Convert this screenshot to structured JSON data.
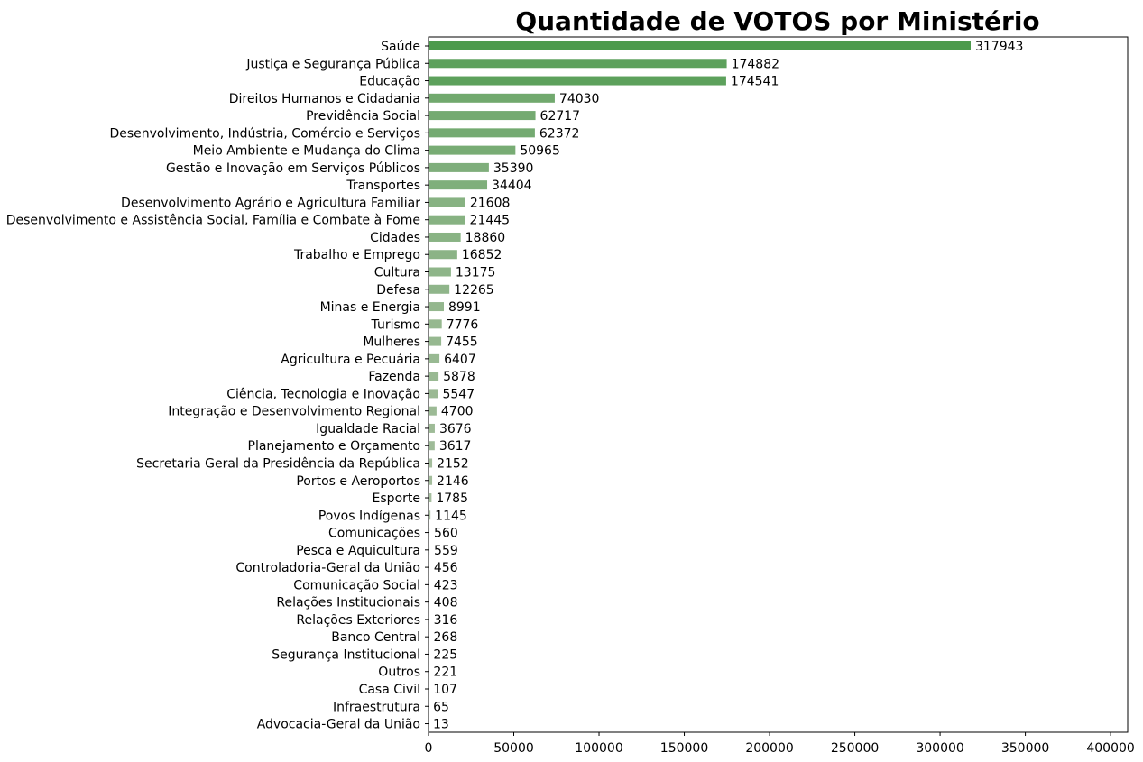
{
  "chart_data": {
    "type": "bar",
    "orientation": "horizontal",
    "title": "Quantidade de VOTOS por Ministério",
    "xlabel": "",
    "ylabel": "",
    "xlim": [
      0,
      410000
    ],
    "x_ticks": [
      0,
      50000,
      100000,
      150000,
      200000,
      250000,
      300000,
      350000,
      400000
    ],
    "grid": false,
    "legend": "none",
    "bar_color_max": "#4d9a4d",
    "bar_color_min": "#cfcfc4",
    "categories": [
      "Saúde",
      "Justiça e Segurança Pública",
      "Educação",
      "Direitos Humanos e Cidadania",
      "Previdência Social",
      "Desenvolvimento, Indústria, Comércio e Serviços",
      "Meio Ambiente e Mudança do Clima",
      "Gestão e Inovação em Serviços Públicos",
      "Transportes",
      "Desenvolvimento Agrário e Agricultura Familiar",
      "Desenvolvimento e Assistência Social, Família e Combate à Fome",
      "Cidades",
      "Trabalho e Emprego",
      "Cultura",
      "Defesa",
      "Minas e Energia",
      "Turismo",
      "Mulheres",
      "Agricultura e Pecuária",
      "Fazenda",
      "Ciência, Tecnologia e Inovação",
      "Integração e Desenvolvimento Regional",
      "Igualdade Racial",
      "Planejamento e Orçamento",
      "Secretaria Geral da Presidência da República",
      "Portos e Aeroportos",
      "Esporte",
      "Povos Indígenas",
      "Comunicações",
      "Pesca e Aquicultura",
      "Controladoria-Geral da União",
      "Comunicação Social",
      "Relações Institucionais",
      "Relações Exteriores",
      "Banco Central",
      "Segurança Institucional",
      "Outros",
      "Casa Civil",
      "Infraestrutura",
      "Advocacia-Geral da União"
    ],
    "values": [
      317943,
      174882,
      174541,
      74030,
      62717,
      62372,
      50965,
      35390,
      34404,
      21608,
      21445,
      18860,
      16852,
      13175,
      12265,
      8991,
      7776,
      7455,
      6407,
      5878,
      5547,
      4700,
      3676,
      3617,
      2152,
      2146,
      1785,
      1145,
      560,
      559,
      456,
      423,
      408,
      316,
      268,
      225,
      221,
      107,
      65,
      13
    ]
  }
}
